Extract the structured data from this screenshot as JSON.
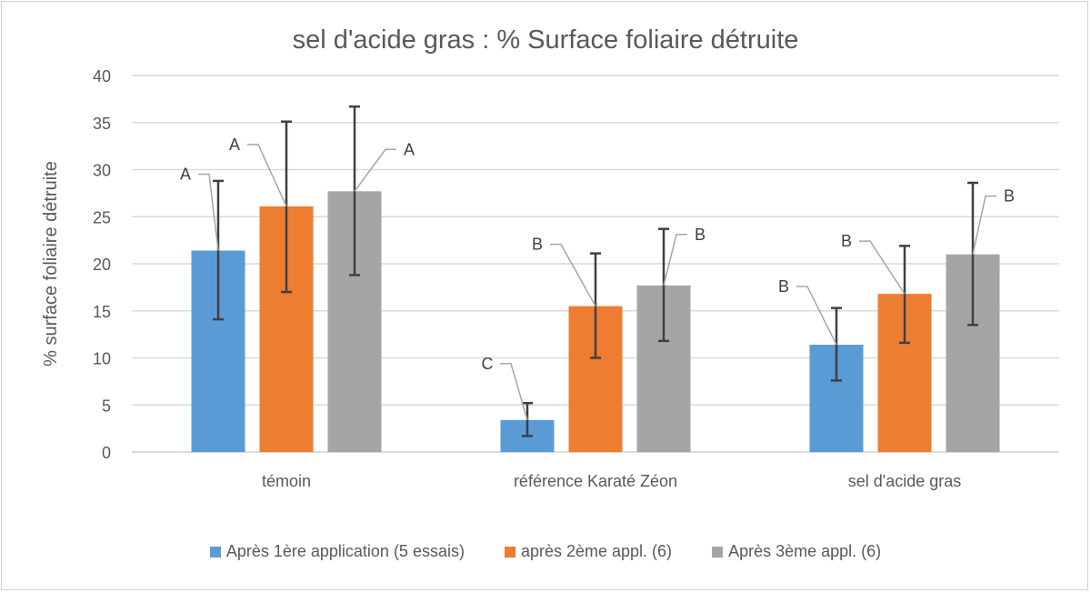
{
  "chart_data": {
    "type": "bar",
    "title": "sel d'acide gras : % Surface foliaire détruite",
    "xlabel": "",
    "ylabel": "% surface foliaire détruite",
    "ylim": [
      0,
      40
    ],
    "yticks": [
      0,
      5,
      10,
      15,
      20,
      25,
      30,
      35,
      40
    ],
    "grid": true,
    "legend_position": "bottom",
    "categories": [
      "témoin",
      "référence Karaté Zéon",
      "sel d'acide gras"
    ],
    "series": [
      {
        "name": "Après 1ère application (5 essais)",
        "color": "#5B9BD5",
        "values": [
          21.4,
          3.4,
          11.4
        ],
        "error_upper": [
          28.8,
          5.2,
          15.3
        ],
        "error_lower": [
          14.1,
          1.7,
          7.6
        ],
        "labels": [
          "A",
          "C",
          "B"
        ]
      },
      {
        "name": "après 2ème appl. (6)",
        "color": "#ED7D31",
        "values": [
          26.1,
          15.5,
          16.8
        ],
        "error_upper": [
          35.1,
          21.1,
          21.9
        ],
        "error_lower": [
          17.0,
          10.0,
          11.6
        ],
        "labels": [
          "A",
          "B",
          "B"
        ]
      },
      {
        "name": "Après 3ème appl. (6)",
        "color": "#A5A5A5",
        "values": [
          27.7,
          17.7,
          21.0
        ],
        "error_upper": [
          36.7,
          23.7,
          28.6
        ],
        "error_lower": [
          18.8,
          11.8,
          13.5
        ],
        "labels": [
          "A",
          "B",
          "B"
        ]
      }
    ]
  }
}
